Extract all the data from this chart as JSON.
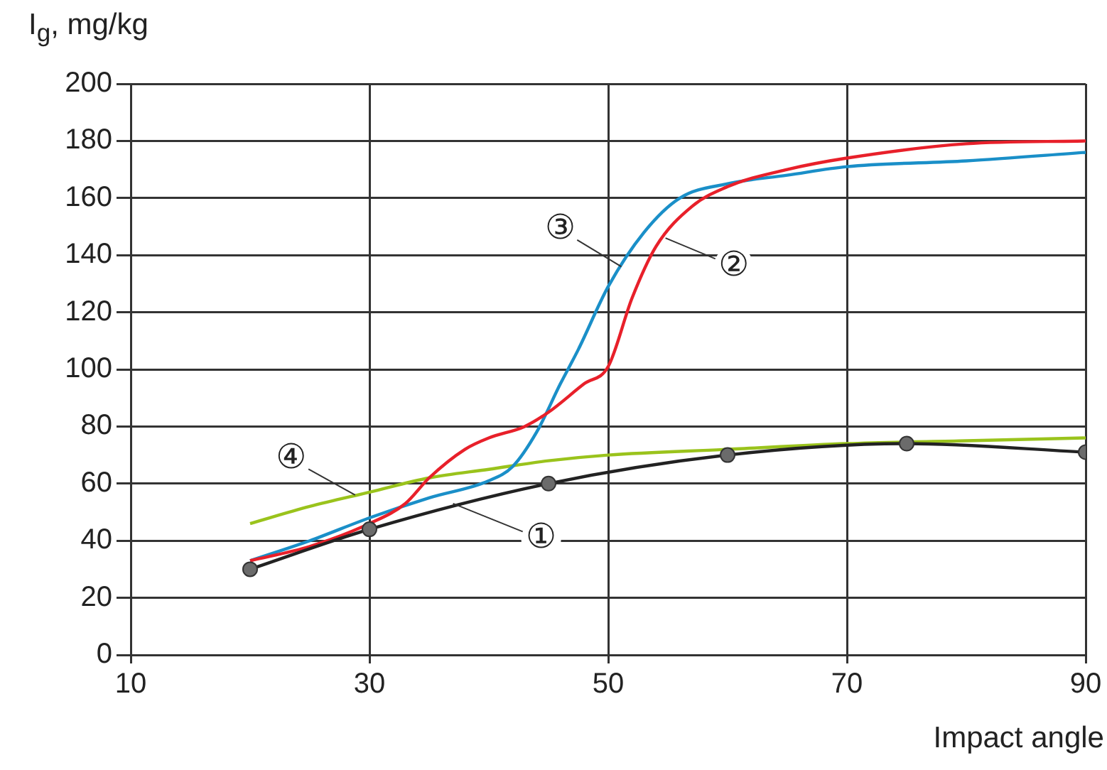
{
  "chart_data": {
    "type": "line",
    "xlabel": "Impact angle",
    "ylabel": "I$_{g}$, mg/kg",
    "xlim": [
      10,
      90
    ],
    "xticks": [
      10,
      30,
      50,
      70,
      90
    ],
    "ylim": [
      0,
      200
    ],
    "yticks": [
      0,
      20,
      40,
      60,
      80,
      100,
      120,
      140,
      160,
      180,
      200
    ],
    "grid": true,
    "legend": false,
    "line_style": "solid",
    "series": [
      {
        "color": "#222222",
        "marker": "circle",
        "x": [
          20,
          30,
          45,
          60,
          75,
          90
        ],
        "values": [
          30,
          44,
          60,
          70,
          74,
          71
        ]
      },
      {
        "color": "#e8202a",
        "marker": "none",
        "x": [
          20,
          25,
          30,
          33,
          35,
          38,
          40,
          43,
          45,
          48,
          50,
          52,
          54,
          57,
          60,
          65,
          70,
          80,
          90
        ],
        "values": [
          33,
          38,
          46,
          53,
          62,
          72,
          76,
          80,
          85,
          95,
          101,
          125,
          143,
          157,
          164,
          170,
          174,
          179,
          180
        ]
      },
      {
        "color": "#1a8fc8",
        "marker": "none",
        "x": [
          20,
          25,
          30,
          35,
          40,
          42,
          44,
          46,
          47.5,
          50,
          53,
          56,
          60,
          65,
          70,
          80,
          90
        ],
        "values": [
          33,
          40,
          48,
          55,
          61,
          66,
          78,
          95,
          107,
          129,
          148,
          160,
          165,
          168,
          171,
          173,
          176
        ]
      },
      {
        "color": "#9ac31c",
        "marker": "none",
        "x": [
          20,
          25,
          30,
          35,
          40,
          45,
          50,
          60,
          70,
          80,
          90
        ],
        "values": [
          46,
          52,
          57,
          62,
          65,
          68,
          70,
          72,
          74,
          75,
          76
        ]
      }
    ],
    "annotations": [
      {
        "text": "①",
        "x": 37,
        "y": 53
      },
      {
        "text": "②",
        "x": 54.8,
        "y": 146
      },
      {
        "text": "③",
        "x": 51.1,
        "y": 136
      },
      {
        "text": "④",
        "x": 28.8,
        "y": 56
      }
    ]
  }
}
